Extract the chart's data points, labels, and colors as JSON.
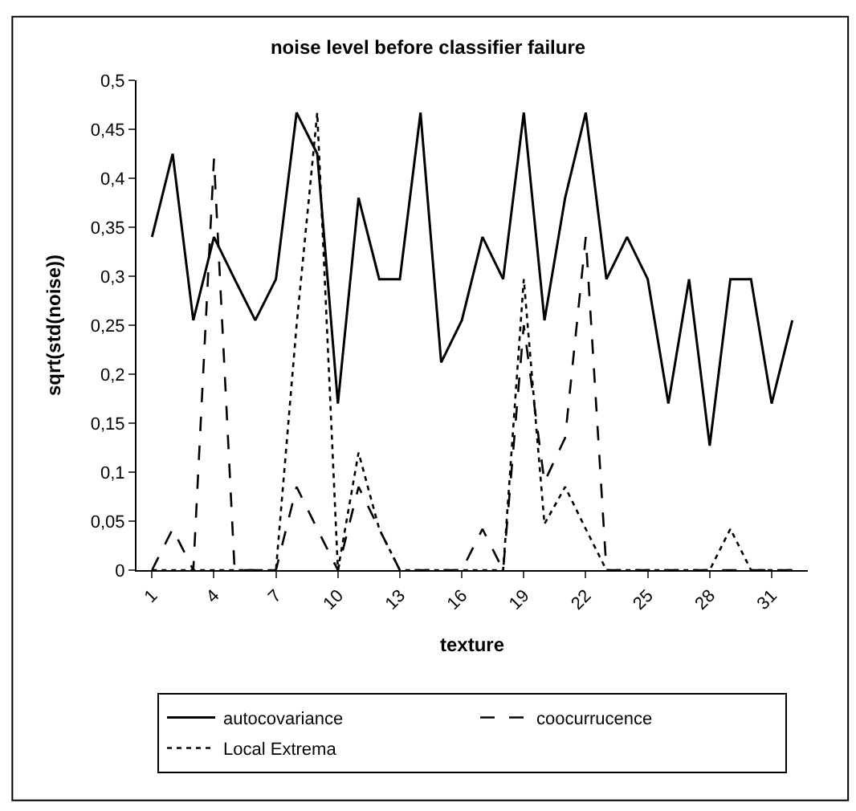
{
  "chart_data": {
    "type": "line",
    "title": "noise level before classifier failure",
    "xlabel": "texture",
    "ylabel": "sqrt(std(noise))",
    "categories": [
      "1",
      null,
      null,
      "4",
      null,
      null,
      "7",
      null,
      null,
      "10",
      null,
      null,
      "13",
      null,
      null,
      "16",
      null,
      null,
      "19",
      null,
      null,
      "22",
      null,
      null,
      "25",
      null,
      null,
      "28",
      null,
      null,
      "31",
      null
    ],
    "series": [
      {
        "name": "autocovariance",
        "color": "#000000",
        "line_style": "solid",
        "values": [
          0.34,
          0.425,
          0.255,
          0.34,
          0.297,
          0.255,
          0.297,
          0.467,
          0.425,
          0.17,
          0.38,
          0.297,
          0.297,
          0.467,
          0.212,
          0.255,
          0.34,
          0.297,
          0.467,
          0.255,
          0.38,
          0.467,
          0.297,
          0.34,
          0.297,
          0.17,
          0.297,
          0.127,
          0.297,
          0.297,
          0.17,
          0.255
        ]
      },
      {
        "name": "coocurrucence",
        "color": "#000000",
        "line_style": "dashed",
        "values": [
          0,
          0.042,
          0,
          0.42,
          0,
          0,
          0,
          0.085,
          0.042,
          0,
          0.085,
          0.042,
          0,
          0,
          0,
          0,
          0.042,
          0,
          0.25,
          0.09,
          0.135,
          0.34,
          0,
          0,
          0,
          0,
          0,
          0,
          0,
          0,
          0,
          0
        ]
      },
      {
        "name": "Local Extrema",
        "color": "#000000",
        "line_style": "dotted",
        "values": [
          0,
          0,
          0,
          0,
          0,
          0,
          0,
          0.25,
          0.467,
          0,
          0.12,
          0.042,
          0,
          0,
          0,
          0,
          0,
          0,
          0.297,
          0.047,
          0.085,
          0.042,
          0,
          0,
          0,
          0,
          0,
          0,
          0.042,
          0,
          0,
          0
        ]
      }
    ],
    "ylim": [
      0,
      0.5
    ],
    "yticks": [
      {
        "value": 0,
        "label": "0"
      },
      {
        "value": 0.05,
        "label": "0,05"
      },
      {
        "value": 0.1,
        "label": "0,1"
      },
      {
        "value": 0.15,
        "label": "0,15"
      },
      {
        "value": 0.2,
        "label": "0,2"
      },
      {
        "value": 0.25,
        "label": "0,25"
      },
      {
        "value": 0.3,
        "label": "0,3"
      },
      {
        "value": 0.35,
        "label": "0,35"
      },
      {
        "value": 0.4,
        "label": "0,4"
      },
      {
        "value": 0.45,
        "label": "0,45"
      },
      {
        "value": 0.5,
        "label": "0,5"
      }
    ],
    "legend": "bottom",
    "marker": "none"
  }
}
